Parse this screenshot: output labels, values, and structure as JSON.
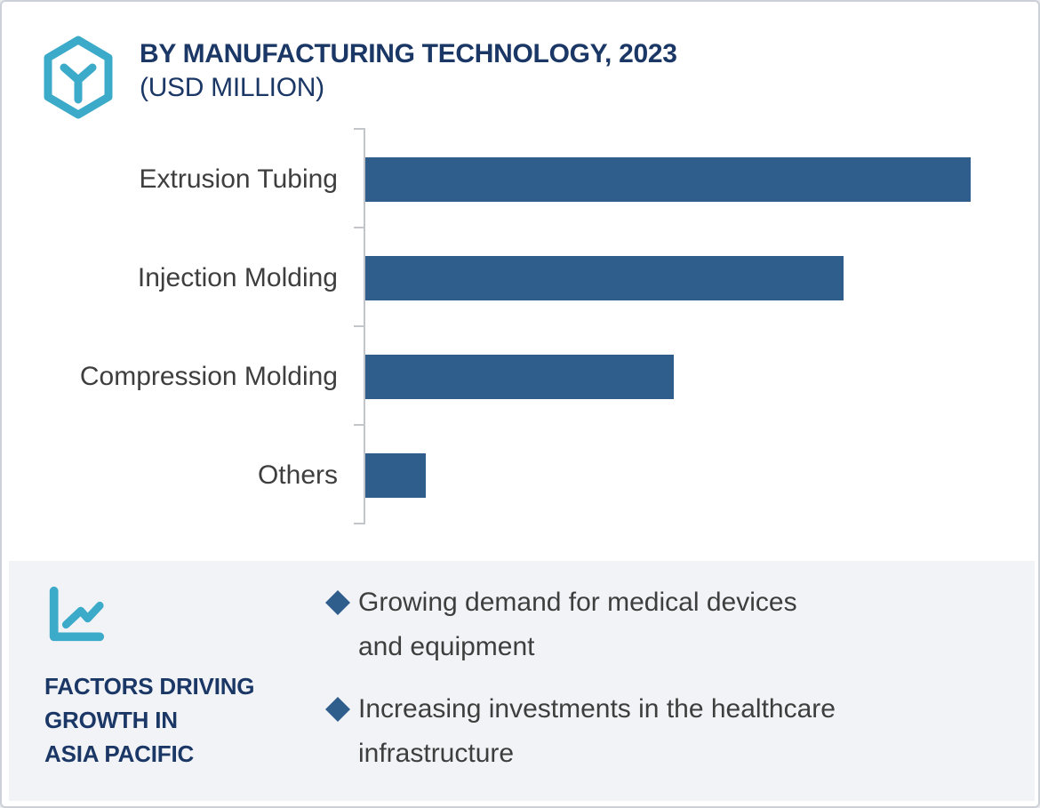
{
  "header": {
    "logo_icon": "hexagon-cube-logo-icon",
    "title": "BY MANUFACTURING TECHNOLOGY, 2023",
    "subtitle": "(USD MILLION)"
  },
  "chart_data": {
    "type": "bar",
    "orientation": "horizontal",
    "title": "BY MANUFACTURING TECHNOLOGY, 2023 (USD MILLION)",
    "categories": [
      "Extrusion Tubing",
      "Injection Molding",
      "Compression Molding",
      "Others"
    ],
    "values": [
      100,
      79,
      51,
      10
    ],
    "xlabel": "",
    "ylabel": "",
    "xlim": [
      0,
      105
    ],
    "grid": false,
    "legend": false,
    "axis_tick_labels_visible": false,
    "note": "Axis has no numeric tick labels; values are estimated relative bar lengths with the longest bar normalized to 100."
  },
  "factors_panel": {
    "icon": "trending-line-chart-icon",
    "heading_lines": [
      "FACTORS DRIVING",
      "GROWTH IN",
      "ASIA PACIFIC"
    ],
    "bullet_marker": "diamond",
    "bullets": [
      {
        "lines": [
          "Growing demand for medical devices",
          "and equipment"
        ]
      },
      {
        "lines": [
          "Increasing investments in the healthcare",
          "infrastructure"
        ]
      }
    ]
  },
  "colors": {
    "navy": "#1b3766",
    "bar_blue": "#2f5e8d",
    "accent_teal": "#3caac9",
    "text_gray": "#3e3e3e",
    "panel_bg": "#f2f3f7",
    "card_border": "#ccd0d7",
    "axis_gray": "#c2c5c9"
  }
}
